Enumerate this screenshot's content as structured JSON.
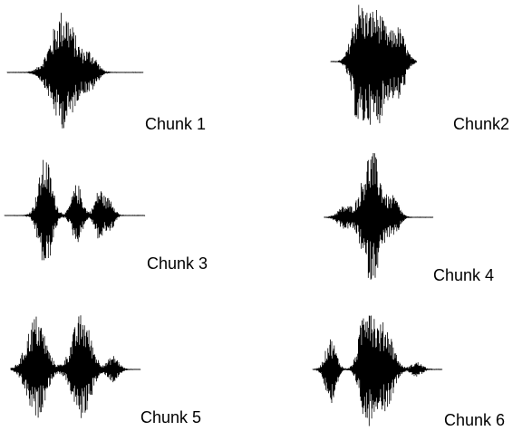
{
  "chunks": [
    {
      "label": "Chunk 1"
    },
    {
      "label": "Chunk2"
    },
    {
      "label": "Chunk 3"
    },
    {
      "label": "Chunk 4"
    },
    {
      "label": "Chunk 5"
    },
    {
      "label": "Chunk 6"
    }
  ]
}
